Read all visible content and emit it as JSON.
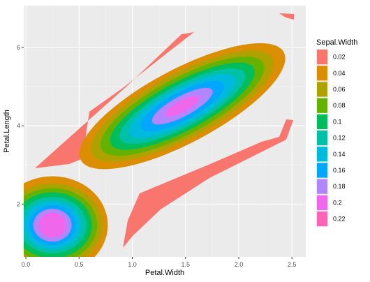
{
  "chart_data": {
    "type": "filled-density-contour",
    "xlabel": "Petal.Width",
    "ylabel": "Petal.Length",
    "xlim": [
      -0.02,
      2.63
    ],
    "ylim": [
      0.65,
      7.07
    ],
    "x_ticks": [
      {
        "value": 0.0,
        "label": "0.0"
      },
      {
        "value": 0.5,
        "label": "0.5"
      },
      {
        "value": 1.0,
        "label": "1.0"
      },
      {
        "value": 1.5,
        "label": "1.5"
      },
      {
        "value": 2.0,
        "label": "2.0"
      },
      {
        "value": 2.5,
        "label": "2.5"
      }
    ],
    "y_ticks": [
      {
        "value": 2,
        "label": "2"
      },
      {
        "value": 4,
        "label": "4"
      },
      {
        "value": 6,
        "label": "6"
      }
    ],
    "grid": true,
    "legend": {
      "title": "Sepal.Width",
      "placement": "right",
      "levels": [
        {
          "label": "0.02",
          "color": "#F8766D"
        },
        {
          "label": "0.04",
          "color": "#DB8E00"
        },
        {
          "label": "0.06",
          "color": "#AEA200"
        },
        {
          "label": "0.08",
          "color": "#64B200"
        },
        {
          "label": "0.1",
          "color": "#00BD5C"
        },
        {
          "label": "0.12",
          "color": "#00C1A7"
        },
        {
          "label": "0.14",
          "color": "#00BADE"
        },
        {
          "label": "0.16",
          "color": "#00A6FF"
        },
        {
          "label": "0.18",
          "color": "#B385FF"
        },
        {
          "label": "0.2",
          "color": "#EF67EB"
        },
        {
          "label": "0.22",
          "color": "#FF63B6"
        }
      ]
    },
    "clusters": [
      {
        "center": [
          0.25,
          1.46
        ],
        "ellipse_radii": [
          [
            0.52,
            1.25
          ],
          [
            0.47,
            1.07
          ],
          [
            0.42,
            0.95
          ],
          [
            0.37,
            0.84
          ],
          [
            0.32,
            0.72
          ],
          [
            0.27,
            0.62
          ],
          [
            0.22,
            0.51
          ],
          [
            0.18,
            0.42
          ],
          [
            0.13,
            0.32
          ]
        ]
      },
      {
        "center": [
          1.47,
          4.5
        ],
        "rotation_deg": -28,
        "ellipse_radii": [
          [
            1.08,
            0.94
          ],
          [
            0.96,
            0.82
          ],
          [
            0.86,
            0.72
          ],
          [
            0.76,
            0.62
          ],
          [
            0.66,
            0.53
          ],
          [
            0.56,
            0.45
          ],
          [
            0.44,
            0.36
          ],
          [
            0.32,
            0.26
          ],
          [
            0.18,
            0.15
          ]
        ]
      }
    ]
  }
}
